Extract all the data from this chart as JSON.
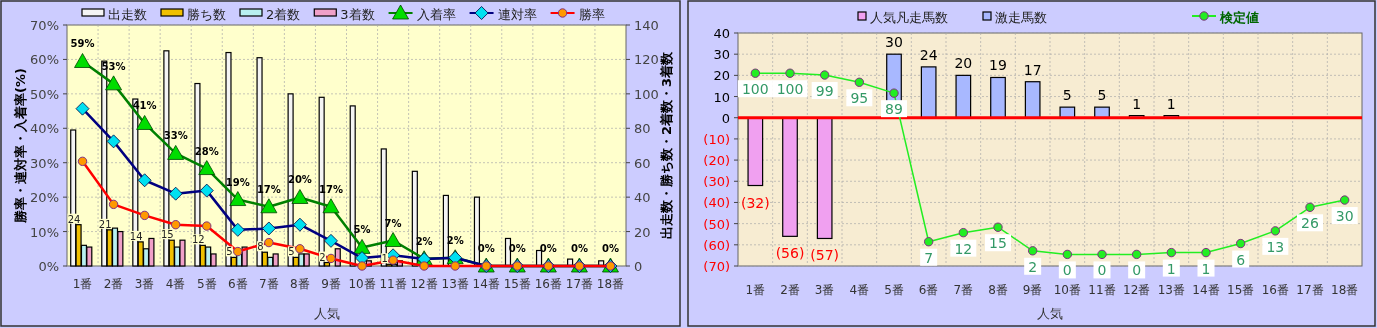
{
  "chart_data": [
    {
      "type": "bar",
      "xlabel": "人気",
      "ylabel": "勝率・連対率・入着率(%)",
      "y2label": "出走数・勝ち数・2着数・3着数",
      "categories": [
        "1番",
        "2番",
        "3番",
        "4番",
        "5番",
        "6番",
        "7番",
        "8番",
        "9番",
        "10番",
        "11番",
        "12番",
        "13番",
        "14番",
        "15番",
        "16番",
        "17番",
        "18番"
      ],
      "ylim": [
        0,
        70
      ],
      "yticks": [
        {
          "value": 0,
          "label": "0%"
        },
        {
          "value": 10,
          "label": "10%"
        },
        {
          "value": 20,
          "label": "20%"
        },
        {
          "value": 30,
          "label": "30%"
        },
        {
          "value": 40,
          "label": "40%"
        },
        {
          "value": 50,
          "label": "50%"
        },
        {
          "value": 60,
          "label": "60%"
        },
        {
          "value": 70,
          "label": "70%"
        }
      ],
      "y2lim": [
        0,
        140
      ],
      "y2ticks": [
        0,
        20,
        40,
        60,
        80,
        100,
        120,
        140
      ],
      "grid": true,
      "legend": "top",
      "series": [
        {
          "name": "出走数",
          "axis": "y2",
          "color": "#f4f4f4",
          "values": [
            79,
            119,
            97,
            125,
            106,
            124,
            121,
            100,
            98,
            93,
            68,
            55,
            41,
            40,
            16,
            9,
            4,
            3
          ]
        },
        {
          "name": "勝ち数",
          "axis": "y2",
          "color": "#f0c000",
          "values": [
            24,
            21,
            14,
            15,
            12,
            5,
            8,
            5,
            2,
            0,
            1,
            0,
            0,
            0,
            0,
            0,
            0,
            0
          ],
          "value_labels": [
            "24",
            "21",
            "14",
            "15",
            "12",
            "5",
            "8",
            "5",
            "2",
            null,
            "1",
            null,
            null,
            null,
            null,
            null,
            null,
            null
          ]
        },
        {
          "name": "2着数",
          "axis": "y2",
          "color": "#b8f0f0",
          "values": [
            12,
            22,
            10,
            11,
            11,
            8,
            5,
            7,
            null,
            null,
            1,
            null,
            null,
            0,
            0,
            0,
            0,
            0
          ]
        },
        {
          "name": "3着数",
          "axis": "y2",
          "color": "#f0a0c8",
          "values": [
            11,
            20,
            16,
            15,
            7,
            11,
            7,
            7,
            10,
            3,
            3,
            0,
            0,
            0,
            0,
            0,
            0,
            0
          ]
        },
        {
          "name": "入着率",
          "type": "line",
          "marker": "triangle",
          "color": "#008000",
          "values": [
            59.4,
            52.9,
            41.4,
            32.7,
            28.3,
            19.3,
            17.2,
            19.9,
            17.2,
            5.4,
            7.4,
            2.1,
            2.4,
            0,
            0,
            0,
            0,
            0
          ],
          "value_labels": [
            "59%",
            "53%",
            "41%",
            "33%",
            "28%",
            "19%",
            "17%",
            "20%",
            "17%",
            "5%",
            "7%",
            "2%",
            "2%",
            "0%",
            "0%",
            "0%",
            "0%",
            "0%"
          ]
        },
        {
          "name": "連対率",
          "type": "line",
          "marker": "diamond",
          "color": "#000080",
          "values": [
            45.7,
            36.2,
            24.9,
            21.0,
            21.9,
            10.5,
            10.9,
            12.0,
            7.3,
            2.3,
            3.1,
            2.0,
            2.4,
            0,
            0,
            0,
            0,
            0
          ]
        },
        {
          "name": "勝率",
          "type": "line",
          "marker": "circle",
          "color": "#ff0000",
          "values": [
            30.4,
            17.9,
            14.7,
            12.0,
            11.6,
            4.2,
            6.8,
            5.0,
            2.2,
            0,
            1.7,
            0,
            0,
            0,
            0,
            0,
            0,
            0
          ]
        }
      ]
    },
    {
      "type": "bar",
      "xlabel": "人気",
      "stacked": true,
      "categories": [
        "1番",
        "2番",
        "3番",
        "4番",
        "5番",
        "6番",
        "7番",
        "8番",
        "9番",
        "10番",
        "11番",
        "12番",
        "13番",
        "14番",
        "15番",
        "16番",
        "17番",
        "18番"
      ],
      "ylim": [
        -70,
        40
      ],
      "yticks": [
        {
          "value": -70,
          "label": "(70)"
        },
        {
          "value": -60,
          "label": "(60)"
        },
        {
          "value": -50,
          "label": "(50)"
        },
        {
          "value": -40,
          "label": "(40)"
        },
        {
          "value": -30,
          "label": "(30)"
        },
        {
          "value": -20,
          "label": "(20)"
        },
        {
          "value": -10,
          "label": "(10)"
        },
        0,
        10,
        20,
        30,
        40
      ],
      "y2lim": [
        -6.4,
        122.2
      ],
      "grid": true,
      "legend": "top",
      "ref_lines": [
        {
          "axis": "y",
          "value": 0,
          "color": "#ff0000"
        }
      ],
      "series": [
        {
          "name": "人気凡走馬数",
          "color": "#f0a0f0",
          "values": [
            -32,
            -56,
            -57,
            null,
            null,
            null,
            null,
            null,
            null,
            null,
            null,
            null,
            null,
            null,
            null,
            null,
            null,
            null
          ],
          "value_labels": [
            "(32)",
            "(56)",
            "(57)",
            null,
            null,
            null,
            null,
            null,
            null,
            null,
            null,
            null,
            null,
            null,
            null,
            null,
            null,
            null
          ]
        },
        {
          "name": "激走馬数",
          "color": "#a8b8ff",
          "values": [
            null,
            null,
            null,
            null,
            30,
            24,
            20,
            19,
            17,
            5,
            5,
            1,
            1,
            null,
            null,
            null,
            null,
            null
          ],
          "value_labels": [
            null,
            null,
            null,
            null,
            "30",
            "24",
            "20",
            "19",
            "17",
            "5",
            "5",
            "1",
            "1",
            null,
            null,
            null,
            null,
            null
          ]
        },
        {
          "name": "検定値",
          "type": "line",
          "axis": "y2",
          "marker": "circle",
          "color": "#22ee22",
          "values": [
            100,
            100,
            99,
            95,
            89,
            7,
            12,
            15,
            2,
            0,
            0,
            0,
            1,
            1,
            6,
            13,
            26,
            30
          ],
          "value_labels": [
            "100",
            "100",
            "99",
            "95",
            "89",
            "7",
            "12",
            "15",
            "2",
            "0",
            "0",
            "0",
            "1",
            "1",
            "6",
            "13",
            "26",
            "30"
          ]
        }
      ]
    }
  ]
}
